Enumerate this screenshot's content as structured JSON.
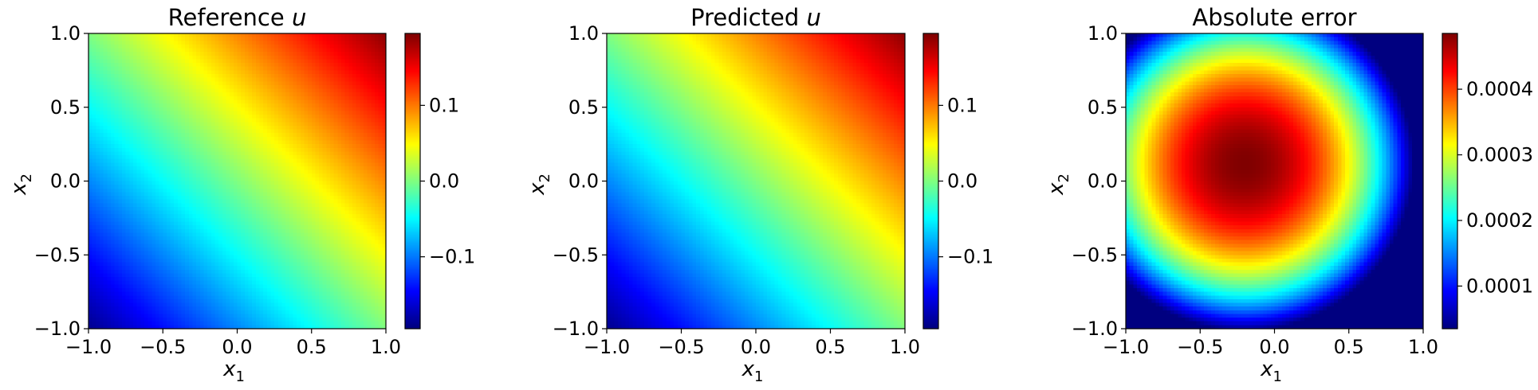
{
  "colormap": "jet",
  "chart_data": [
    {
      "type": "heatmap",
      "title_text": "Reference ",
      "title_var": "u",
      "xlabel": "x",
      "xlabel_sub": "1",
      "ylabel": "x",
      "ylabel_sub": "2",
      "xlim": [
        -1.0,
        1.0
      ],
      "ylim": [
        -1.0,
        1.0
      ],
      "xticks": [
        -1.0,
        -0.5,
        0.0,
        0.5,
        1.0
      ],
      "yticks": [
        -1.0,
        -0.5,
        0.0,
        0.5,
        1.0
      ],
      "xtick_labels": [
        "−1.0",
        "−0.5",
        "0.0",
        "0.5",
        "1.0"
      ],
      "ytick_labels": [
        "−1.0",
        "−0.5",
        "0.0",
        "0.5",
        "1.0"
      ],
      "field": "plane",
      "field_params": {
        "center": 0.0,
        "slope_x": 0.095,
        "slope_y": 0.095
      },
      "colorbar": {
        "vmin": -0.195,
        "vmax": 0.195,
        "ticks": [
          -0.1,
          0.0,
          0.1
        ],
        "tick_labels": [
          "−0.1",
          "0.0",
          "0.1"
        ]
      }
    },
    {
      "type": "heatmap",
      "title_text": "Predicted ",
      "title_var": "u",
      "xlabel": "x",
      "xlabel_sub": "1",
      "ylabel": "x",
      "ylabel_sub": "2",
      "xlim": [
        -1.0,
        1.0
      ],
      "ylim": [
        -1.0,
        1.0
      ],
      "xticks": [
        -1.0,
        -0.5,
        0.0,
        0.5,
        1.0
      ],
      "yticks": [
        -1.0,
        -0.5,
        0.0,
        0.5,
        1.0
      ],
      "xtick_labels": [
        "−1.0",
        "−0.5",
        "0.0",
        "0.5",
        "1.0"
      ],
      "ytick_labels": [
        "−1.0",
        "−0.5",
        "0.0",
        "0.5",
        "1.0"
      ],
      "field": "plane",
      "field_params": {
        "center": 0.0,
        "slope_x": 0.095,
        "slope_y": 0.095
      },
      "colorbar": {
        "vmin": -0.195,
        "vmax": 0.195,
        "ticks": [
          -0.1,
          0.0,
          0.1
        ],
        "tick_labels": [
          "−0.1",
          "0.0",
          "0.1"
        ]
      }
    },
    {
      "type": "heatmap",
      "title_text": "Absolute error",
      "title_var": "",
      "xlabel": "x",
      "xlabel_sub": "1",
      "ylabel": "x",
      "ylabel_sub": "2",
      "xlim": [
        -1.0,
        1.0
      ],
      "ylim": [
        -1.0,
        1.0
      ],
      "xticks": [
        -1.0,
        -0.5,
        0.0,
        0.5,
        1.0
      ],
      "yticks": [
        -1.0,
        -0.5,
        0.0,
        0.5,
        1.0
      ],
      "xtick_labels": [
        "−1.0",
        "−0.5",
        "0.0",
        "0.5",
        "1.0"
      ],
      "ytick_labels": [
        "−1.0",
        "−0.5",
        "0.0",
        "0.5",
        "1.0"
      ],
      "field": "bump",
      "field_params": {
        "peak": 0.000485,
        "center_x": -0.2,
        "center_y": 0.12,
        "decay": 0.1
      },
      "colorbar": {
        "vmin": 3.5e-05,
        "vmax": 0.000485,
        "ticks": [
          0.0001,
          0.0002,
          0.0003,
          0.0004
        ],
        "tick_labels": [
          "0.0001",
          "0.0002",
          "0.0003",
          "0.0004"
        ]
      }
    }
  ]
}
